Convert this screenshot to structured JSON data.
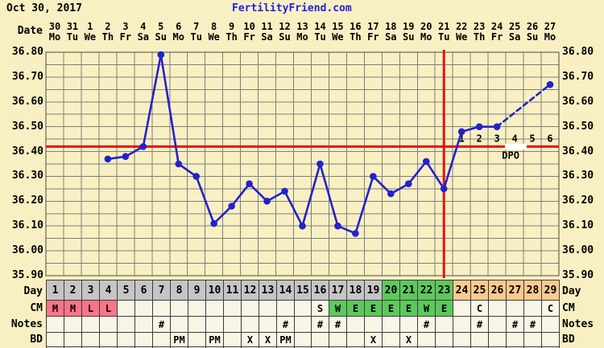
{
  "header": {
    "date": "Oct 30, 2017",
    "site": "FertilityFriend.com"
  },
  "axis": {
    "date_row_label": "Date",
    "dates": [
      "30",
      "31",
      "1",
      "2",
      "3",
      "4",
      "5",
      "6",
      "7",
      "8",
      "9",
      "10",
      "11",
      "12",
      "13",
      "14",
      "15",
      "16",
      "17",
      "18",
      "19",
      "20",
      "21",
      "22",
      "23",
      "24",
      "25",
      "26",
      "27"
    ],
    "weekdays": [
      "Mo",
      "Tu",
      "We",
      "Th",
      "Fr",
      "Sa",
      "Su",
      "Mo",
      "Tu",
      "We",
      "Th",
      "Fr",
      "Sa",
      "Su",
      "Mo",
      "Tu",
      "We",
      "Th",
      "Fr",
      "Sa",
      "Su",
      "Mo",
      "Tu",
      "We",
      "Th",
      "Fr",
      "Sa",
      "Su",
      "Mo"
    ],
    "y_labels": [
      "36.80",
      "36.70",
      "36.60",
      "36.50",
      "36.40",
      "36.30",
      "36.20",
      "36.10",
      "36.00",
      "35.90"
    ]
  },
  "chart_data": {
    "type": "line",
    "ylim": [
      35.9,
      36.8
    ],
    "y_tick_step": 0.1,
    "y_gridline_step": 0.05,
    "x_days": 29,
    "series": [
      {
        "name": "basal-body-temperature",
        "points": [
          {
            "day": 4,
            "temp": 36.37
          },
          {
            "day": 5,
            "temp": 36.38
          },
          {
            "day": 6,
            "temp": 36.42
          },
          {
            "day": 7,
            "temp": 36.79
          },
          {
            "day": 8,
            "temp": 36.35
          },
          {
            "day": 9,
            "temp": 36.3
          },
          {
            "day": 10,
            "temp": 36.11
          },
          {
            "day": 11,
            "temp": 36.18
          },
          {
            "day": 12,
            "temp": 36.27
          },
          {
            "day": 13,
            "temp": 36.2
          },
          {
            "day": 14,
            "temp": 36.24
          },
          {
            "day": 15,
            "temp": 36.1
          },
          {
            "day": 16,
            "temp": 36.35
          },
          {
            "day": 17,
            "temp": 36.1
          },
          {
            "day": 18,
            "temp": 36.07
          },
          {
            "day": 19,
            "temp": 36.3
          },
          {
            "day": 20,
            "temp": 36.23
          },
          {
            "day": 21,
            "temp": 36.27
          },
          {
            "day": 22,
            "temp": 36.36
          },
          {
            "day": 23,
            "temp": 36.25
          },
          {
            "day": 24,
            "temp": 36.48
          },
          {
            "day": 25,
            "temp": 36.5
          },
          {
            "day": 26,
            "temp": 36.5
          },
          {
            "day": 29,
            "temp": 36.67
          }
        ]
      }
    ],
    "coverline_temp": 36.42,
    "ovulation_line_day": 23,
    "dpo": {
      "start_day": 24,
      "labels": [
        "1",
        "2",
        "3",
        "4",
        "5",
        "6"
      ],
      "caption": "DPO"
    },
    "legend": "none",
    "grid": "on"
  },
  "table": {
    "row_labels": {
      "day": "Day",
      "cm": "CM",
      "notes": "Notes",
      "bd": "BD"
    },
    "day_numbers": [
      "1",
      "2",
      "3",
      "4",
      "5",
      "6",
      "7",
      "8",
      "9",
      "10",
      "11",
      "12",
      "13",
      "14",
      "15",
      "16",
      "17",
      "18",
      "19",
      "20",
      "21",
      "22",
      "23",
      "24",
      "25",
      "26",
      "27",
      "28",
      "29"
    ],
    "day_phase_colors": {
      "gray_days": [
        1,
        19
      ],
      "green_days": [
        20,
        23
      ],
      "orange_days": [
        24,
        29
      ]
    },
    "cm_values": {
      "1": "M",
      "2": "M",
      "3": "L",
      "4": "L",
      "16": "S",
      "17": "W",
      "18": "E",
      "19": "E",
      "20": "E",
      "21": "E",
      "22": "W",
      "23": "E",
      "25": "C",
      "29": "C"
    },
    "cm_cell_colors": {
      "pink_days": [
        1,
        4
      ],
      "green_days": [
        17,
        23
      ]
    },
    "notes_values": {
      "7": "#",
      "14": "#",
      "16": "#",
      "17": "#",
      "22": "#",
      "25": "#",
      "27": "#",
      "28": "#"
    },
    "bd_values": {
      "8": "PM",
      "10": "PM",
      "12": "X",
      "13": "X",
      "14": "PM",
      "19": "X",
      "21": "X"
    }
  },
  "colors": {
    "page_bg": "#F8F0C2",
    "cell_bg": "#FAF6E6",
    "grid": "#7E7E7E",
    "plot_border": "#4A4A4A",
    "cell_border": "#3C3C3C",
    "day_gray": "#C5C5C5",
    "phase_green": "#5CC95C",
    "phase_orange": "#FACA8E",
    "cm_pink": "#FA7489",
    "line_blue": "#2222CC",
    "red": "#E61212",
    "site_blue": "#2222DD",
    "text": "#000000"
  }
}
